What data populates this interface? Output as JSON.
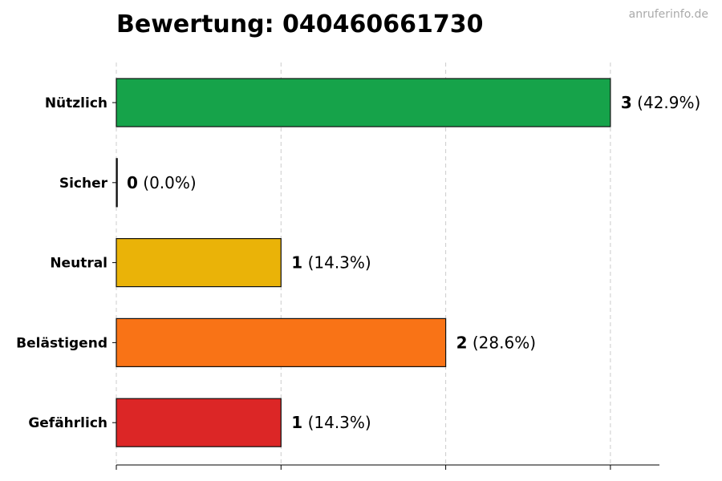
{
  "chart_data": {
    "type": "bar",
    "orientation": "horizontal",
    "title": "Bewertung: 040460661730",
    "watermark": "anruferinfo.de",
    "categories": [
      "Nützlich",
      "Sicher",
      "Neutral",
      "Belästigend",
      "Gefährlich"
    ],
    "values": [
      3,
      0,
      1,
      2,
      1
    ],
    "percent_labels": [
      "(42.9%)",
      "(0.0%)",
      "(14.3%)",
      "(28.6%)",
      "(14.3%)"
    ],
    "colors": [
      "#16a34a",
      "#1e3a8a",
      "#eab308",
      "#f97316",
      "#dc2626"
    ],
    "xlim": [
      0,
      4.4
    ],
    "grid": "vertical dashed",
    "legend": "none"
  }
}
